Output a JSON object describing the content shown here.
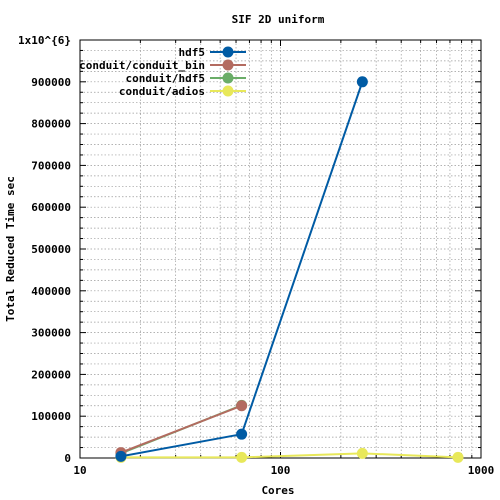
{
  "chart_data": {
    "type": "line",
    "title": "SIF 2D uniform",
    "xlabel": "Cores",
    "ylabel": "Total Reduced Time sec",
    "xscale": "log",
    "xlim": [
      10,
      1000
    ],
    "ylim": [
      0,
      1000000
    ],
    "x_ticks": [
      10,
      100,
      1000
    ],
    "x_tick_labels": [
      "10",
      "100",
      "1000"
    ],
    "y_ticks": [
      0,
      100000,
      200000,
      300000,
      400000,
      500000,
      600000,
      700000,
      800000,
      900000,
      1000000
    ],
    "y_tick_labels": [
      "0",
      "100000",
      "200000",
      "300000",
      "400000",
      "500000",
      "600000",
      "700000",
      "800000",
      "900000",
      "1x10^{6}"
    ],
    "grid": true,
    "legend_position": "top-left",
    "series": [
      {
        "name": "hdf5",
        "color": "#005ba4",
        "x": [
          16,
          64,
          256
        ],
        "y": [
          4000,
          57000,
          900000
        ]
      },
      {
        "name": "conduit/conduit_bin",
        "color": "#b36b60",
        "x": [
          16,
          64
        ],
        "y": [
          13000,
          125000
        ]
      },
      {
        "name": "conduit/hdf5",
        "color": "#6aad68",
        "x": [
          16,
          64
        ],
        "y": [
          11000,
          126000
        ]
      },
      {
        "name": "conduit/adios",
        "color": "#e8e85a",
        "x": [
          16,
          64,
          256,
          768
        ],
        "y": [
          1500,
          1500,
          11000,
          1500
        ]
      }
    ]
  }
}
